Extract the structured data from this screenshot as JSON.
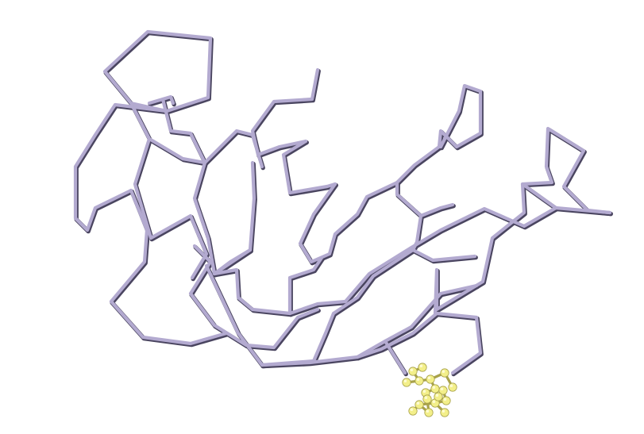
{
  "scene": {
    "background": "#ffffff",
    "backbone_color": "#b3aad0",
    "backbone_shadow_color": "#4a4560",
    "ligand_color": "#f3ef8a",
    "ligand_highlight_color": "#fdfbd0",
    "ligand_shadow_color": "#a8a24a"
  }
}
